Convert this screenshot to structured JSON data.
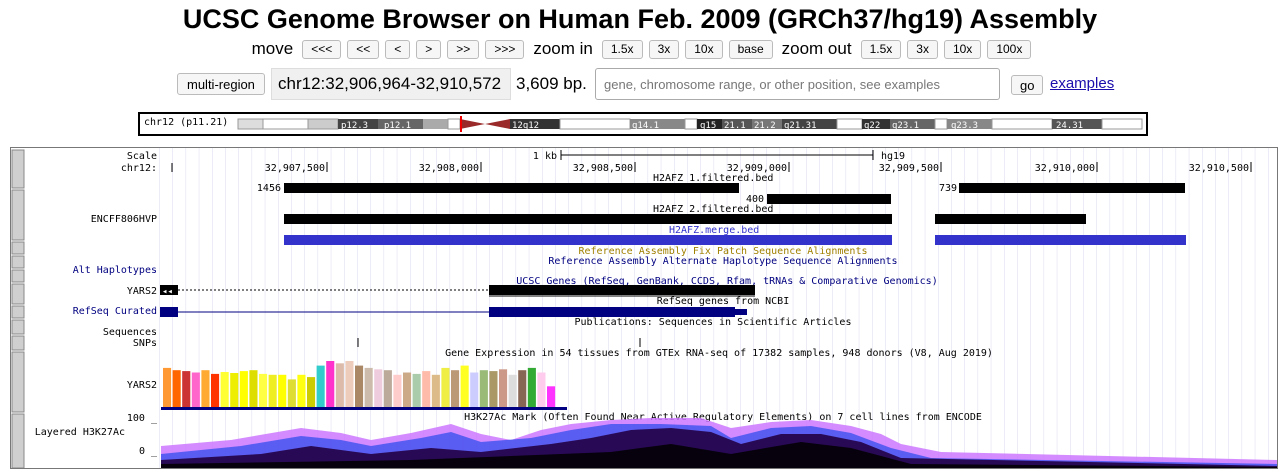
{
  "header": {
    "title": "UCSC Genome Browser on Human Feb. 2009 (GRCh37/hg19) Assembly"
  },
  "nav": {
    "move_label": "move",
    "move_buttons": [
      "<<<",
      "<<",
      "<",
      ">",
      ">>",
      ">>>"
    ],
    "zoom_in_label": "zoom in",
    "zoom_in_buttons": [
      "1.5x",
      "3x",
      "10x",
      "base"
    ],
    "zoom_out_label": "zoom out",
    "zoom_out_buttons": [
      "1.5x",
      "3x",
      "10x",
      "100x"
    ]
  },
  "position": {
    "multi_region_label": "multi-region",
    "position_text": "chr12:32,906,964-32,910,572",
    "size_text": "3,609 bp.",
    "search_placeholder": "gene, chromosome range, or other position, see examples",
    "go_label": "go",
    "examples_label": "examples"
  },
  "ideogram": {
    "label": "chr12 (p11.21)",
    "bands": [
      "p12.3",
      "p12.1",
      "12q12",
      "q14.1",
      "q15",
      "21.1",
      "21.2",
      "q21.31",
      "q22",
      "q23.1",
      "q23.3",
      "24.31"
    ]
  },
  "tracks": {
    "scale_label": "Scale",
    "chrom_label": "chr12:",
    "scale_bar_label": "1 kb",
    "assembly_label": "hg19",
    "ruler_ticks": [
      "32,907,500",
      "32,908,000",
      "32,908,500",
      "32,909,000",
      "32,909,500",
      "32,910,000",
      "32,910,500"
    ],
    "h2afz1_title": "H2AFZ_1.filtered.bed",
    "h2afz1_scores": [
      "1456",
      "739"
    ],
    "h2afz2_score": "400",
    "h2afz2_title": "H2AFZ_2.filtered.bed",
    "encff_label": "ENCFF806HVP",
    "merge_title": "H2AFZ.merge.bed",
    "fix_patch_title": "Reference Assembly Fix Patch Sequence Alignments",
    "alt_hap_title": "Reference Assembly Alternate Haplotype Sequence Alignments",
    "alt_hap_label": "Alt Haplotypes",
    "ucsc_genes_title": "UCSC Genes (RefSeq, GenBank, CCDS, Rfam, tRNAs & Comparative Genomics)",
    "yars2_label": "YARS2",
    "refseq_title": "RefSeq genes from NCBI",
    "refseq_label": "RefSeq Curated",
    "pub_title": "Publications: Sequences in Scientific Articles",
    "sequences_label": "Sequences",
    "snps_label": "SNPs",
    "gtex_title": "Gene Expression in 54 tissues from GTEx RNA-seq of 17382 samples, 948 donors (V8, Aug 2019)",
    "gtex_label": "YARS2",
    "h3k27_title": "H3K27Ac Mark (Often Found Near Active Regulatory Elements) on 7 cell lines from ENCODE",
    "h3k27_label": "Layered H3K27Ac",
    "h3k27_max": "100 _",
    "h3k27_min": "0 _"
  },
  "colors": {
    "link": "#1a0dab",
    "track_dark_blue": "#000080",
    "merge_blue": "#3333cc",
    "fix_patch_gold": "#a08000",
    "gtex_bars": [
      "#ff9933",
      "#ff6600",
      "#cc3333",
      "#ff66cc",
      "#ffaa33",
      "#ff3300",
      "#ffff33",
      "#eeee00",
      "#ffff00",
      "#dddd00",
      "#ffff44",
      "#eeee22",
      "#ffff00",
      "#dddd33",
      "#ffff11",
      "#cccc00",
      "#33cccc",
      "#ff33cc",
      "#ddbbaa",
      "#eeccbb",
      "#aa8866",
      "#ccbbaa",
      "#eeccdd",
      "#bbaa99",
      "#ffcccc",
      "#ccaa88",
      "#aaccaa",
      "#ffbbaa",
      "#ddbb88",
      "#eeee44",
      "#bb9977",
      "#ffff22",
      "#ccccff",
      "#99bb77",
      "#aa9966",
      "#cc9988",
      "#dddddd",
      "#886655",
      "#33aa33",
      "#ffccee",
      "#ff33ff"
    ],
    "gtex_heights": [
      0.85,
      0.8,
      0.78,
      0.75,
      0.8,
      0.72,
      0.76,
      0.74,
      0.78,
      0.8,
      0.72,
      0.7,
      0.7,
      0.6,
      0.7,
      0.65,
      0.9,
      1.0,
      0.95,
      1.0,
      0.9,
      0.85,
      0.82,
      0.8,
      0.7,
      0.75,
      0.72,
      0.78,
      0.7,
      0.85,
      0.8,
      0.9,
      0.75,
      0.8,
      0.78,
      0.82,
      0.7,
      0.8,
      0.85,
      0.75,
      0.45
    ]
  }
}
